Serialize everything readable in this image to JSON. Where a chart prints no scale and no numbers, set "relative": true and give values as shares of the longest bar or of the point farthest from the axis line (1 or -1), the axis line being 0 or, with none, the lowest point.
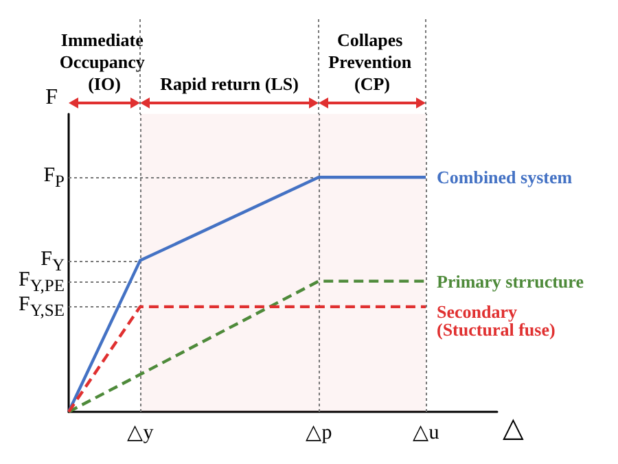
{
  "chart_data": {
    "type": "line",
    "xlabel": "△",
    "ylabel": "F",
    "relative": true,
    "categories": [
      null,
      null,
      "△y",
      null,
      null,
      null,
      null,
      "△p",
      null,
      null,
      "△u",
      null,
      null
    ],
    "legend": false,
    "marker": "none",
    "ref_lines": [
      {
        "axis": "y",
        "value": 1,
        "label": "F$_{P}$",
        "color": "#777777",
        "line_style": "dotted"
      },
      {
        "axis": "y",
        "value": 0.645,
        "label": "F$_{Y}$",
        "color": "#777777",
        "line_style": "dotted"
      },
      {
        "axis": "y",
        "value": 0.557,
        "label": "F$_{Y,PE}$",
        "color": "#777777",
        "line_style": "dotted"
      },
      {
        "axis": "y",
        "value": 0.448,
        "label": "F$_{Y,SE}$",
        "color": "#777777",
        "line_style": "dotted"
      },
      {
        "axis": "x",
        "value": "△y",
        "color": "#777777",
        "line_style": "dotted"
      },
      {
        "axis": "x",
        "value": "△p",
        "color": "#777777",
        "line_style": "dotted"
      },
      {
        "axis": "x",
        "value": "△u",
        "color": "#777777",
        "line_style": "dotted"
      }
    ],
    "annotations": [
      "Immediate Occupancy (IO)"
    ],
    "bands": [
      {
        "axis": "x",
        "from": "△y",
        "to": "△p",
        "label": "Rapid return (LS)",
        "color": "#e03030"
      },
      {
        "axis": "x",
        "from": "△p",
        "to": "△u",
        "label": "Collapes Prevention (CP)",
        "color": "#e03030"
      }
    ],
    "series": [
      {
        "name": "Combined system",
        "color": "#4472c4",
        "line_style": "solid",
        "values": [
          0,
          null,
          0.645,
          null,
          null,
          null,
          null,
          1,
          null,
          null,
          1,
          null,
          null
        ]
      },
      {
        "name": "Primary strructure",
        "color": "#4e8a3a",
        "line_style": "dashed",
        "values": [
          0,
          null,
          null,
          null,
          null,
          null,
          null,
          0.557,
          null,
          null,
          0.557,
          null,
          null
        ]
      },
      {
        "name": "Secondary (Stuctural fuse)",
        "color": "#e03030",
        "line_style": "dashed",
        "values": [
          0,
          null,
          0.448,
          null,
          null,
          null,
          null,
          null,
          null,
          null,
          0.448,
          null,
          null
        ]
      }
    ]
  }
}
